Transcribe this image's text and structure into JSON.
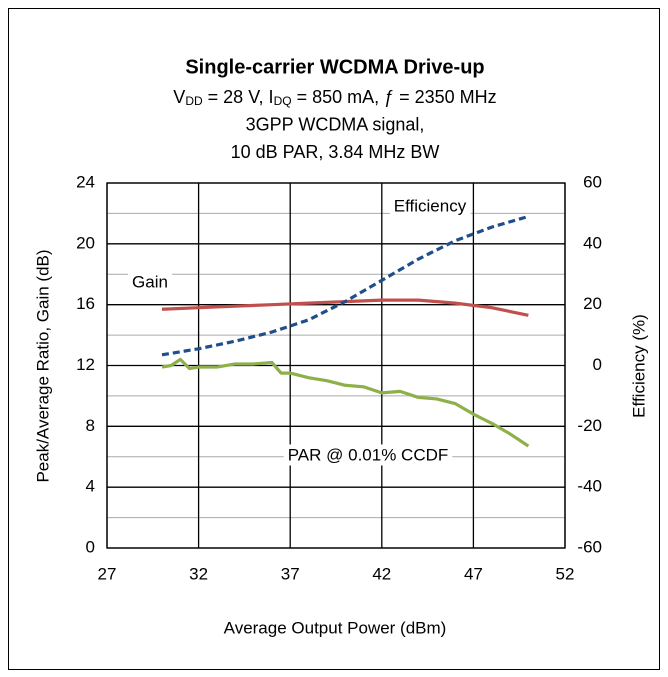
{
  "chart_data": {
    "type": "line",
    "title": "Single-carrier WCDMA Drive-up",
    "subtitle": [
      [
        {
          "text": "V"
        },
        {
          "text": "DD",
          "sub": true
        },
        {
          "text": " = 28 V, I"
        },
        {
          "text": "DQ",
          "sub": true
        },
        {
          "text": " = 850 mA, ƒ = 2350 MHz"
        }
      ],
      [
        {
          "text": "3GPP WCDMA signal,"
        }
      ],
      [
        {
          "text": "10 dB PAR, 3.84 MHz BW"
        }
      ]
    ],
    "x_label": "Average Output Power (dBm)",
    "y_label": "Peak/Average Ratio, Gain (dB)",
    "y2_label": "Efficiency (%)",
    "xlim": [
      27,
      52
    ],
    "xticks": [
      27,
      32,
      37,
      42,
      47,
      52
    ],
    "ylim": [
      0,
      24
    ],
    "yticks": [
      0,
      4,
      8,
      12,
      16,
      20,
      24
    ],
    "yminorticks": [
      2,
      6,
      10,
      14,
      18,
      22
    ],
    "y2lim": [
      -60,
      60
    ],
    "y2ticks": [
      -60,
      -40,
      -20,
      0,
      20,
      40,
      60
    ],
    "grid": true,
    "series": [
      {
        "name": "Gain",
        "color": "#c0504d",
        "dash": false,
        "x": [
          30,
          32,
          34,
          36,
          38,
          40,
          42,
          44,
          46,
          48,
          50
        ],
        "values": [
          15.7,
          15.8,
          15.9,
          16.0,
          16.1,
          16.2,
          16.3,
          16.3,
          16.1,
          15.8,
          15.3
        ]
      },
      {
        "name": "Efficiency",
        "color": "#1f4e8c",
        "dash": true,
        "axis": "y2",
        "x": [
          30,
          32,
          34,
          36,
          38,
          40,
          42,
          44,
          46,
          48,
          50
        ],
        "values": [
          3.5,
          5.5,
          8,
          11,
          15,
          21,
          28,
          35,
          41,
          45.5,
          49
        ]
      },
      {
        "name": "PAR  @ 0.01% CCDF",
        "color": "#8db04a",
        "dash": false,
        "x": [
          30,
          30.5,
          31,
          31.5,
          32,
          33,
          34,
          35,
          36,
          36.5,
          37,
          38,
          39,
          40,
          41,
          42,
          43,
          44,
          45,
          46,
          47,
          48,
          49,
          50
        ],
        "values": [
          11.9,
          12.0,
          12.4,
          11.8,
          11.9,
          11.9,
          12.1,
          12.1,
          12.2,
          11.5,
          11.5,
          11.2,
          11.0,
          10.7,
          10.6,
          10.2,
          10.3,
          9.9,
          9.8,
          9.5,
          8.8,
          8.2,
          7.5,
          6.7
        ]
      }
    ]
  }
}
